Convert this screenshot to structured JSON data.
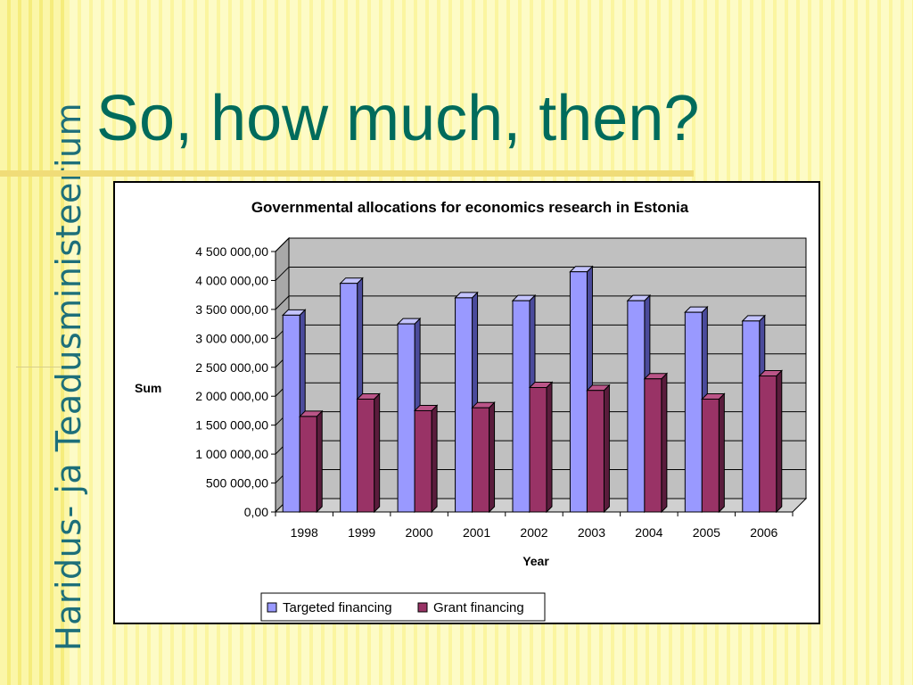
{
  "slide": {
    "title": "So, how much, then?",
    "logo_text": "Haridus- ja Teadusministeerium"
  },
  "colors": {
    "title": "#006b5c",
    "logo": "#1d6f7a",
    "targeted": "#9999ff",
    "grant": "#993366",
    "plot_bg": "#c0c0c0"
  },
  "chart_data": {
    "type": "bar",
    "title": "Governmental allocations for economics research in Estonia",
    "xlabel": "Year",
    "ylabel": "Sum",
    "categories": [
      "1998",
      "1999",
      "2000",
      "2001",
      "2002",
      "2003",
      "2004",
      "2005",
      "2006"
    ],
    "series": [
      {
        "name": "Targeted financing",
        "values": [
          3400000,
          3950000,
          3250000,
          3700000,
          3650000,
          4150000,
          3650000,
          3450000,
          3300000
        ]
      },
      {
        "name": "Grant financing",
        "values": [
          1650000,
          1950000,
          1750000,
          1800000,
          2150000,
          2100000,
          2300000,
          1950000,
          2350000
        ]
      }
    ],
    "ylim": [
      0,
      4500000
    ],
    "yticks": [
      "0,00",
      "500 000,00",
      "1 000 000,00",
      "1 500 000,00",
      "2 000 000,00",
      "2 500 000,00",
      "3 000 000,00",
      "3 500 000,00",
      "4 000 000,00",
      "4 500 000,00"
    ],
    "grid": true,
    "legend": "bottom"
  }
}
